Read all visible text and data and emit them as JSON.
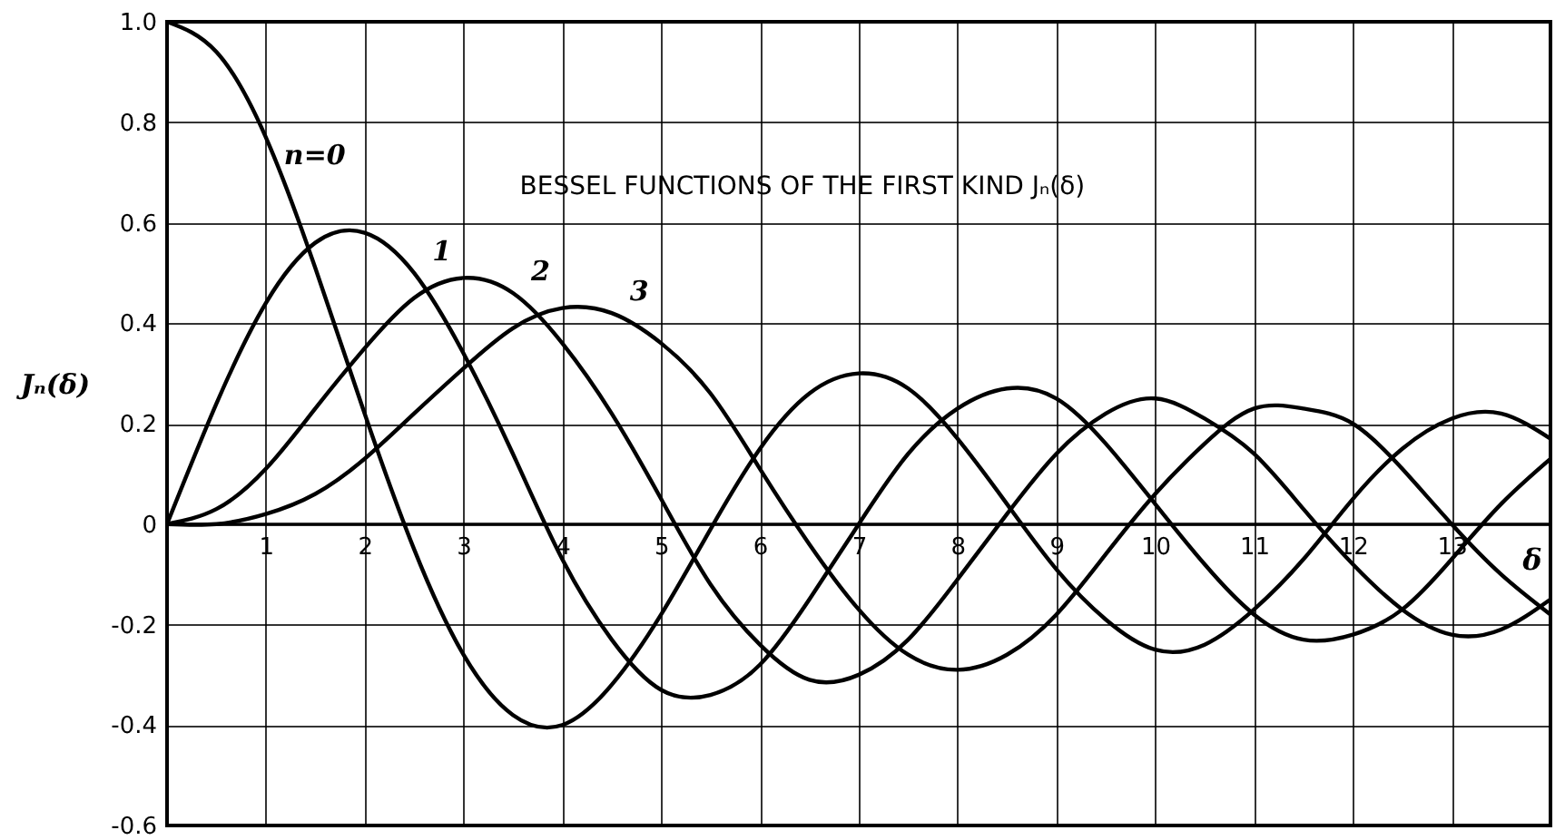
{
  "chart_data": {
    "type": "line",
    "title": "BESSEL FUNCTIONS OF THE FIRST KIND Jₙ(δ)",
    "xlabel": "δ",
    "ylabel": "Jₙ(δ)",
    "x": [
      0,
      0.5,
      1,
      1.5,
      2,
      2.5,
      3,
      3.5,
      4,
      4.5,
      5,
      5.5,
      6,
      6.5,
      7,
      7.5,
      8,
      8.5,
      9,
      9.5,
      10,
      10.5,
      11,
      11.5,
      12,
      12.5,
      13,
      13.5,
      14
    ],
    "series": [
      {
        "name": "n=0",
        "color": "#000000",
        "values": [
          1,
          0.94,
          0.77,
          0.51,
          0.22,
          -0.05,
          -0.26,
          -0.38,
          -0.4,
          -0.32,
          -0.18,
          -0.01,
          0.15,
          0.26,
          0.3,
          0.27,
          0.17,
          0.04,
          -0.09,
          -0.19,
          -0.25,
          -0.24,
          -0.17,
          -0.07,
          0.05,
          0.15,
          0.21,
          0.22,
          0.17
        ]
      },
      {
        "name": "1",
        "color": "#000000",
        "values": [
          0,
          0.24,
          0.44,
          0.56,
          0.58,
          0.5,
          0.34,
          0.14,
          -0.07,
          -0.23,
          -0.33,
          -0.34,
          -0.28,
          -0.15,
          0.0,
          0.14,
          0.23,
          0.27,
          0.25,
          0.16,
          0.04,
          -0.08,
          -0.18,
          -0.23,
          -0.22,
          -0.17,
          -0.07,
          0.04,
          0.13
        ]
      },
      {
        "name": "2",
        "color": "#000000",
        "values": [
          0,
          0.03,
          0.11,
          0.23,
          0.35,
          0.45,
          0.49,
          0.46,
          0.36,
          0.22,
          0.05,
          -0.12,
          -0.24,
          -0.31,
          -0.3,
          -0.23,
          -0.11,
          0.02,
          0.14,
          0.22,
          0.25,
          0.21,
          0.14,
          0.03,
          -0.08,
          -0.17,
          -0.22,
          -0.21,
          -0.15
        ]
      },
      {
        "name": "3",
        "color": "#000000",
        "values": [
          0,
          0.0,
          0.02,
          0.06,
          0.13,
          0.22,
          0.31,
          0.39,
          0.43,
          0.42,
          0.36,
          0.26,
          0.11,
          -0.04,
          -0.17,
          -0.26,
          -0.29,
          -0.26,
          -0.18,
          -0.06,
          0.06,
          0.16,
          0.23,
          0.23,
          0.2,
          0.11,
          0.0,
          -0.1,
          -0.18
        ]
      }
    ],
    "xlim": [
      0,
      14
    ],
    "xticks": [
      {
        "value": 0,
        "label": null
      },
      1,
      2,
      3,
      4,
      5,
      6,
      7,
      8,
      9,
      10,
      11,
      12,
      13,
      {
        "value": 14,
        "label": null
      }
    ],
    "ylim": [
      -0.6,
      1.0
    ],
    "yticks": [
      -0.6,
      -0.4,
      -0.2,
      0,
      0.2,
      0.4,
      0.6,
      0.8,
      {
        "value": 1.0,
        "label": "1.0"
      }
    ],
    "grid": true,
    "marker": "none",
    "line_style": "solid"
  }
}
